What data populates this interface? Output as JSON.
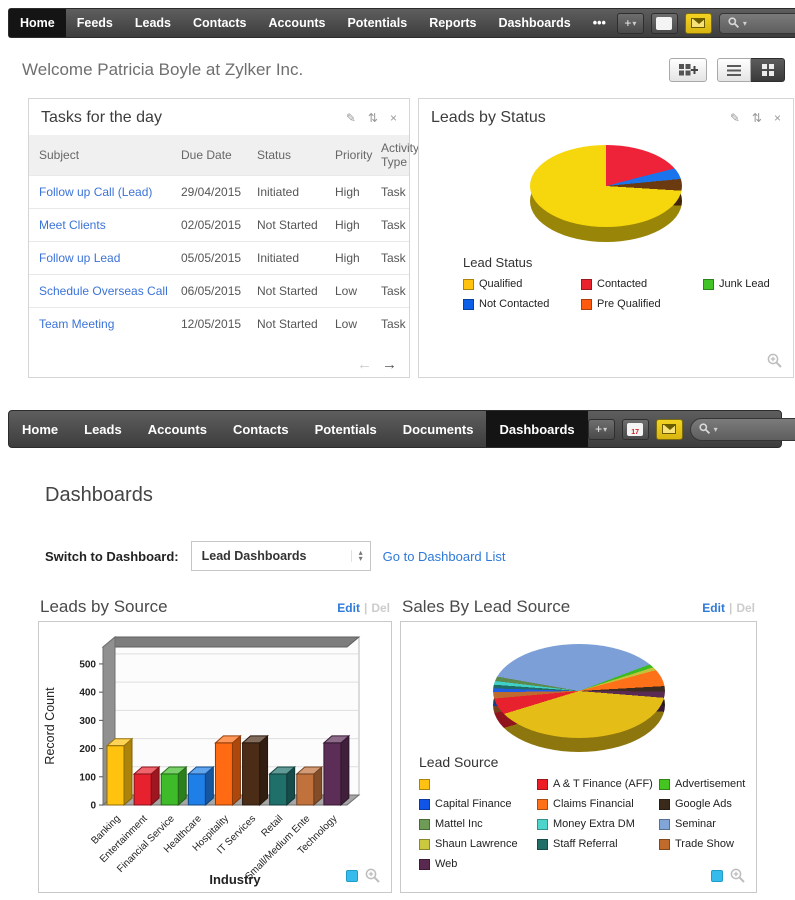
{
  "icons": {
    "plus": "+",
    "caret": "▾",
    "pencil": "✎",
    "refresh": "⇅",
    "close": "×",
    "prev": "←",
    "next": "→",
    "select_up": "▴",
    "select_down": "▾"
  },
  "nav_primary": {
    "items": [
      {
        "label": "Home",
        "active": true
      },
      {
        "label": "Feeds"
      },
      {
        "label": "Leads"
      },
      {
        "label": "Contacts"
      },
      {
        "label": "Accounts"
      },
      {
        "label": "Potentials"
      },
      {
        "label": "Reports"
      },
      {
        "label": "Dashboards"
      },
      {
        "label": "•••"
      }
    ]
  },
  "nav_secondary": {
    "calendar_day": "17",
    "items": [
      {
        "label": "Home"
      },
      {
        "label": "Leads"
      },
      {
        "label": "Accounts"
      },
      {
        "label": "Contacts"
      },
      {
        "label": "Potentials"
      },
      {
        "label": "Documents"
      },
      {
        "label": "Dashboards",
        "active": true
      }
    ]
  },
  "welcome": "Welcome Patricia Boyle at Zylker Inc.",
  "tasks_widget": {
    "title": "Tasks for the day",
    "columns": [
      "Subject",
      "Due Date",
      "Status",
      "Priority",
      "Activity Type"
    ],
    "rows": [
      {
        "subject": "Follow up Call (Lead)",
        "due": "29/04/2015",
        "status": "Initiated",
        "priority": "High",
        "type": "Task"
      },
      {
        "subject": "Meet Clients",
        "due": "02/05/2015",
        "status": "Not Started",
        "priority": "High",
        "type": "Task"
      },
      {
        "subject": "Follow up Lead",
        "due": "05/05/2015",
        "status": "Initiated",
        "priority": "High",
        "type": "Task"
      },
      {
        "subject": "Schedule Overseas Call",
        "due": "06/05/2015",
        "status": "Not Started",
        "priority": "Low",
        "type": "Task"
      },
      {
        "subject": "Team Meeting",
        "due": "12/05/2015",
        "status": "Not Started",
        "priority": "Low",
        "type": "Task"
      }
    ]
  },
  "status_widget": {
    "title": "Leads by Status"
  },
  "dash": {
    "title": "Dashboards",
    "switch_label": "Switch to Dashboard:",
    "dropdown_value": "Lead Dashboards",
    "list_link": "Go to Dashboard List",
    "sep": "|",
    "left_chart": {
      "title": "Leads by Source",
      "edit": "Edit",
      "del": "Del"
    },
    "right_chart": {
      "title": "Sales By Lead Source",
      "edit": "Edit",
      "del": "Del"
    }
  },
  "chart_data": [
    {
      "id": "leads_by_status",
      "type": "pie",
      "title": "Leads by Status",
      "legend_title": "Lead Status",
      "legend_position": "bottom",
      "start_angle": 0,
      "slices": [
        {
          "label": "Contacted",
          "color": "#ee2238",
          "pct": 21
        },
        {
          "label": "Not Contacted",
          "color": "#1b74ec",
          "pct": 2.5
        },
        {
          "label": "Pre Qualified",
          "color": "#6b3a10",
          "pct": 2.5
        },
        {
          "label": "Qualified",
          "color": "#f6d60c",
          "pct": 74
        }
      ],
      "legend": [
        {
          "label": "Qualified",
          "color": "#ffc20e"
        },
        {
          "label": "Contacted",
          "color": "#e8232e"
        },
        {
          "label": "Junk Lead",
          "color": "#41c226"
        },
        {
          "label": "Not Contacted",
          "color": "#0d5fe8"
        },
        {
          "label": "Pre Qualified",
          "color": "#ff5a0d"
        }
      ]
    },
    {
      "id": "leads_by_source",
      "type": "bar",
      "title": "Leads by Source",
      "xlabel": "Industry",
      "ylabel": "Record Count",
      "yticks": [
        0,
        100,
        200,
        300,
        400,
        500
      ],
      "ylim": [
        0,
        560
      ],
      "grid": true,
      "categories": [
        "Banking",
        "Entertainment",
        "Financial Service",
        "Healthcare",
        "Hospitality",
        "IT Services",
        "Retail",
        "Small/Medium Ente",
        "Technology"
      ],
      "values": [
        210,
        110,
        110,
        110,
        220,
        220,
        110,
        110,
        220
      ],
      "colors": [
        "#ffc20e",
        "#e8212e",
        "#3fbb2a",
        "#1f7fe8",
        "#ff6a13",
        "#4a2c17",
        "#1f6f6b",
        "#c1713b",
        "#5c2d56"
      ]
    },
    {
      "id": "sales_by_lead_source",
      "type": "pie",
      "title": "Sales By Lead Source",
      "legend_title": "Lead Source",
      "legend_position": "bottom",
      "start_angle": -80,
      "slices": [
        {
          "label": "Seminar",
          "color": "#7b9fd6",
          "pct": 41.5
        },
        {
          "label": "Advertisement",
          "color": "#3dbb22",
          "pct": 0.8
        },
        {
          "label": "Shaun Lawrence",
          "color": "#c3c23b",
          "pct": 0.7
        },
        {
          "label": "Claims Financial",
          "color": "#ff7119",
          "pct": 3.3
        },
        {
          "label": "Google Ads",
          "color": "#3d2b1f",
          "pct": 1.0
        },
        {
          "label": "Web",
          "color": "#5a2b52",
          "pct": 1.2
        },
        {
          "label": "",
          "color": "#e4be17",
          "pct": 44
        },
        {
          "label": "A & T Finance (AFF)",
          "color": "#e8212e",
          "pct": 3.3
        },
        {
          "label": "Trade Show",
          "color": "#bf6a2e",
          "pct": 1.2
        },
        {
          "label": "Capital Finance",
          "color": "#1f5fe8",
          "pct": 0.7
        },
        {
          "label": "Staff Referral",
          "color": "#1f6b66",
          "pct": 0.7
        },
        {
          "label": "Money Extra DM",
          "color": "#40d0c8",
          "pct": 0.7
        },
        {
          "label": "Mattel Inc",
          "color": "#5b8a4c",
          "pct": 0.9
        }
      ],
      "legend": [
        {
          "label": "",
          "color": "#ffc112"
        },
        {
          "label": "A & T Finance (AFF)",
          "color": "#ed1c24"
        },
        {
          "label": "Advertisement",
          "color": "#44c520"
        },
        {
          "label": "Capital Finance",
          "color": "#1155e8"
        },
        {
          "label": "Claims Financial",
          "color": "#ff7119"
        },
        {
          "label": "Google Ads",
          "color": "#3a2a1c"
        },
        {
          "label": "Mattel Inc",
          "color": "#6e9b55"
        },
        {
          "label": "Money Extra DM",
          "color": "#4dd4cc"
        },
        {
          "label": "Seminar",
          "color": "#82a5d8"
        },
        {
          "label": "Shaun Lawrence",
          "color": "#c9c83e"
        },
        {
          "label": "Staff Referral",
          "color": "#206e66"
        },
        {
          "label": "Trade Show",
          "color": "#c06a2c"
        },
        {
          "label": "Web",
          "color": "#59294f"
        }
      ]
    }
  ]
}
